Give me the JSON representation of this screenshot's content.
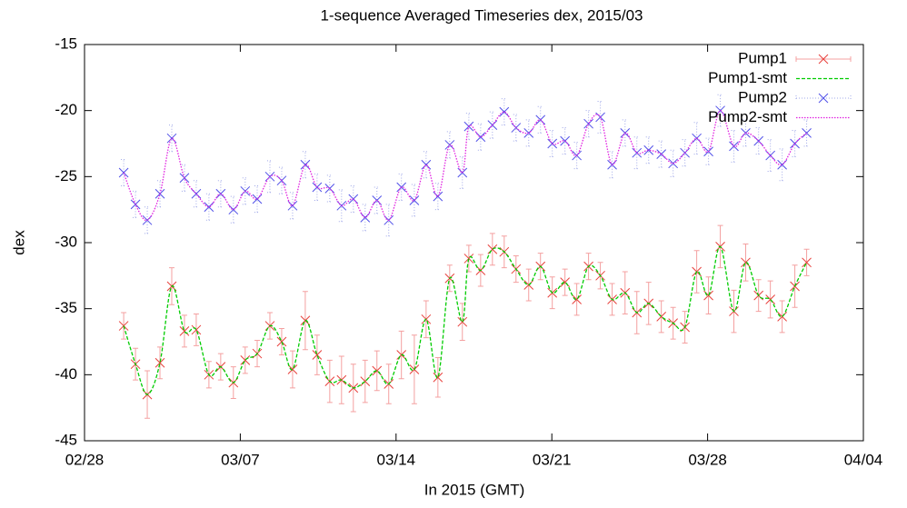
{
  "chart_data": {
    "type": "line",
    "title": "1-sequence Averaged Timeseries dex, 2015/03",
    "xlabel": "In 2015 (GMT)",
    "ylabel": "dex",
    "xlim": [
      0,
      35
    ],
    "xticks": [
      {
        "value": 0,
        "label": "02/28"
      },
      {
        "value": 7,
        "label": "03/07"
      },
      {
        "value": 14,
        "label": "03/14"
      },
      {
        "value": 21,
        "label": "03/21"
      },
      {
        "value": 28,
        "label": "03/28"
      },
      {
        "value": 35,
        "label": "04/04"
      }
    ],
    "ylim": [
      -45,
      -15
    ],
    "yticks": [
      -45,
      -40,
      -35,
      -30,
      -25,
      -20,
      -15
    ],
    "legend": "top-right",
    "x": [
      1.76,
      2.29,
      2.82,
      3.39,
      3.92,
      4.49,
      5.02,
      5.59,
      6.12,
      6.69,
      7.22,
      7.76,
      8.33,
      8.86,
      9.35,
      9.92,
      10.45,
      11.02,
      11.55,
      12.08,
      12.61,
      13.14,
      13.67,
      14.24,
      14.82,
      15.35,
      15.88,
      16.41,
      16.98,
      17.27,
      17.8,
      18.33,
      18.86,
      19.39,
      19.96,
      20.49,
      21.02,
      21.59,
      22.12,
      22.65,
      23.18,
      23.71,
      24.29,
      24.82,
      25.35,
      25.92,
      26.45,
      26.98,
      27.51,
      28.04,
      28.57,
      29.18,
      29.71,
      30.29,
      30.82,
      31.35,
      31.92,
      32.45
    ],
    "series": [
      {
        "name": "Pump1",
        "style": "points",
        "color": "#e8403c",
        "errcolor": "#f4a0a0",
        "values": [
          -36.3,
          -39.2,
          -41.5,
          -39.1,
          -33.3,
          -36.7,
          -36.6,
          -40.0,
          -39.4,
          -40.6,
          -38.9,
          -38.4,
          -36.3,
          -37.5,
          -39.6,
          -35.9,
          -38.5,
          -40.5,
          -40.4,
          -41.0,
          -40.5,
          -39.7,
          -40.7,
          -38.5,
          -39.6,
          -35.8,
          -40.2,
          -32.7,
          -36.0,
          -31.2,
          -32.1,
          -30.5,
          -30.7,
          -32.0,
          -33.2,
          -31.8,
          -33.8,
          -33.0,
          -34.3,
          -31.8,
          -32.5,
          -34.3,
          -33.8,
          -35.3,
          -34.6,
          -35.6,
          -36.1,
          -36.4,
          -32.2,
          -34.0,
          -30.3,
          -35.2,
          -31.5,
          -34.0,
          -34.3,
          -35.6,
          -33.3,
          -31.5
        ],
        "errors": [
          1.0,
          1.2,
          1.8,
          1.2,
          1.4,
          1.2,
          1.2,
          1.0,
          1.0,
          1.2,
          1.0,
          1.0,
          1.0,
          1.0,
          1.4,
          2.2,
          1.5,
          1.6,
          1.8,
          1.8,
          1.6,
          1.5,
          1.5,
          1.8,
          2.6,
          1.4,
          1.5,
          1.0,
          1.4,
          1.0,
          1.2,
          1.2,
          1.2,
          1.0,
          1.2,
          1.0,
          1.2,
          1.0,
          1.2,
          1.0,
          1.0,
          1.2,
          1.6,
          1.6,
          1.6,
          1.2,
          1.2,
          1.2,
          1.6,
          1.4,
          1.6,
          1.6,
          1.4,
          1.2,
          1.4,
          1.2,
          1.6,
          1.0
        ]
      },
      {
        "name": "Pump1-smt",
        "style": "smooth",
        "color": "#00cc00",
        "dash": "4 2",
        "values": [
          -36.3,
          -39.2,
          -41.5,
          -39.1,
          -33.3,
          -36.7,
          -36.6,
          -40.0,
          -39.4,
          -40.6,
          -38.9,
          -38.4,
          -36.3,
          -37.5,
          -39.6,
          -35.9,
          -38.5,
          -40.5,
          -40.4,
          -41.0,
          -40.5,
          -39.7,
          -40.7,
          -38.5,
          -39.6,
          -35.8,
          -40.2,
          -32.7,
          -36.0,
          -31.2,
          -32.1,
          -30.5,
          -30.7,
          -32.0,
          -33.2,
          -31.8,
          -33.8,
          -33.0,
          -34.3,
          -31.8,
          -32.5,
          -34.3,
          -33.8,
          -35.3,
          -34.6,
          -35.6,
          -36.1,
          -36.4,
          -32.2,
          -34.0,
          -30.3,
          -35.2,
          -31.5,
          -34.0,
          -34.3,
          -35.6,
          -33.3,
          -31.5
        ]
      },
      {
        "name": "Pump2",
        "style": "points",
        "color": "#5050e8",
        "errcolor": "#a0a8e8",
        "values": [
          -24.7,
          -27.1,
          -28.3,
          -26.3,
          -22.1,
          -25.1,
          -26.3,
          -27.3,
          -26.3,
          -27.5,
          -26.1,
          -26.7,
          -25.0,
          -25.3,
          -27.2,
          -24.1,
          -25.8,
          -25.9,
          -27.2,
          -26.7,
          -28.1,
          -26.8,
          -28.3,
          -25.8,
          -26.8,
          -24.1,
          -26.5,
          -22.6,
          -24.7,
          -21.2,
          -22.0,
          -21.1,
          -20.1,
          -21.3,
          -21.7,
          -20.7,
          -22.5,
          -22.3,
          -23.4,
          -21.0,
          -20.5,
          -24.1,
          -21.7,
          -23.2,
          -23.0,
          -23.3,
          -24.0,
          -23.2,
          -22.1,
          -23.1,
          -20.0,
          -22.7,
          -21.7,
          -22.3,
          -23.4,
          -24.1,
          -22.5,
          -21.7
        ],
        "errors": [
          1.0,
          1.0,
          1.0,
          1.0,
          1.0,
          1.0,
          1.0,
          1.0,
          1.0,
          1.0,
          1.0,
          1.0,
          1.2,
          1.0,
          1.0,
          1.0,
          1.0,
          1.0,
          1.2,
          1.0,
          1.0,
          1.0,
          1.2,
          1.0,
          1.2,
          1.0,
          1.0,
          1.0,
          1.2,
          1.0,
          1.0,
          1.0,
          1.0,
          1.0,
          1.0,
          1.0,
          1.0,
          1.0,
          1.0,
          1.0,
          1.2,
          1.0,
          1.0,
          1.2,
          1.0,
          1.0,
          1.0,
          1.0,
          1.2,
          1.0,
          1.2,
          1.2,
          1.0,
          1.0,
          1.2,
          1.2,
          1.0,
          1.0
        ]
      },
      {
        "name": "Pump2-smt",
        "style": "smooth",
        "color": "#e020e0",
        "dash": "1.5 1.5",
        "values": [
          -24.7,
          -27.1,
          -28.3,
          -26.3,
          -22.1,
          -25.1,
          -26.3,
          -27.3,
          -26.3,
          -27.5,
          -26.1,
          -26.7,
          -25.0,
          -25.3,
          -27.2,
          -24.1,
          -25.8,
          -25.9,
          -27.2,
          -26.7,
          -28.1,
          -26.8,
          -28.3,
          -25.8,
          -26.8,
          -24.1,
          -26.5,
          -22.6,
          -24.7,
          -21.2,
          -22.0,
          -21.1,
          -20.1,
          -21.3,
          -21.7,
          -20.7,
          -22.5,
          -22.3,
          -23.4,
          -21.0,
          -20.5,
          -24.1,
          -21.7,
          -23.2,
          -23.0,
          -23.3,
          -24.0,
          -23.2,
          -22.1,
          -23.1,
          -20.0,
          -22.7,
          -21.7,
          -22.3,
          -23.4,
          -24.1,
          -22.5,
          -21.7
        ]
      }
    ]
  }
}
